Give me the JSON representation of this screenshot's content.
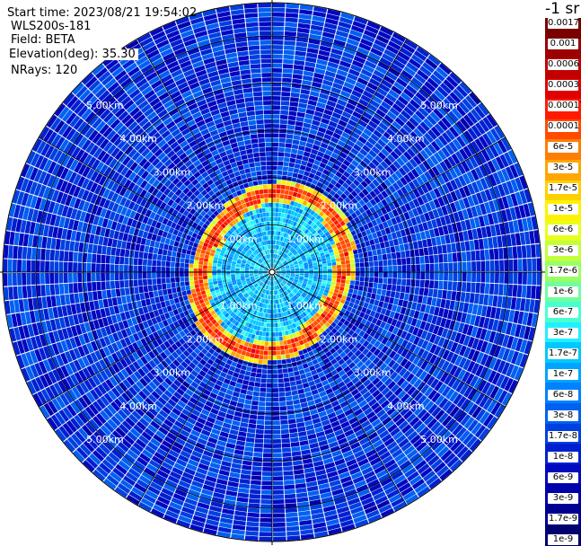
{
  "info": {
    "start_time": "Start time: 2023/08/21 19:54:02",
    "instrument": "WLS200s-181",
    "field": "Field: BETA",
    "elevation": "Elevation(deg): 35.30",
    "nrays": "NRays: 120"
  },
  "chart_data": {
    "type": "heatmap",
    "projection": "polar-ppi",
    "field": "BETA",
    "elevation_deg": 35.3,
    "n_rays": 120,
    "range_rings_km": [
      1.0,
      2.0,
      3.0,
      4.0,
      5.0
    ],
    "range_labels": [
      "1.00km",
      "2.00km",
      "3.00km",
      "4.00km",
      "5.00km"
    ],
    "ring_feature": {
      "description_value": "high backscatter ring",
      "range_km": 1.6,
      "value": 0.0003
    },
    "background_value": 1.7e-09,
    "colorbar": {
      "unit_label": "-1 sr",
      "ticks": [
        "0.0017",
        "0.001",
        "0.0006",
        "0.0003",
        "0.00017",
        "0.0001",
        "6e-5",
        "3e-5",
        "1.7e-5",
        "1e-5",
        "6e-6",
        "3e-6",
        "1.7e-6",
        "1e-6",
        "6e-7",
        "3e-7",
        "1.7e-7",
        "1e-7",
        "6e-8",
        "3e-8",
        "1.7e-8",
        "1e-8",
        "6e-9",
        "3e-9",
        "1.7e-9",
        "1e-9"
      ],
      "colors": [
        "#7a0000",
        "#9c0000",
        "#c20000",
        "#e00000",
        "#ff1a00",
        "#ff4b00",
        "#ff7d00",
        "#ffa600",
        "#ffd000",
        "#fff200",
        "#e8ff1c",
        "#c2ff3c",
        "#98ff66",
        "#6effa0",
        "#48ffd0",
        "#20f0ff",
        "#00c8ff",
        "#00a4ff",
        "#0082ff",
        "#0060f0",
        "#0040e0",
        "#0020d0",
        "#0008c0",
        "#0000a8",
        "#000090",
        "#000070"
      ]
    }
  }
}
